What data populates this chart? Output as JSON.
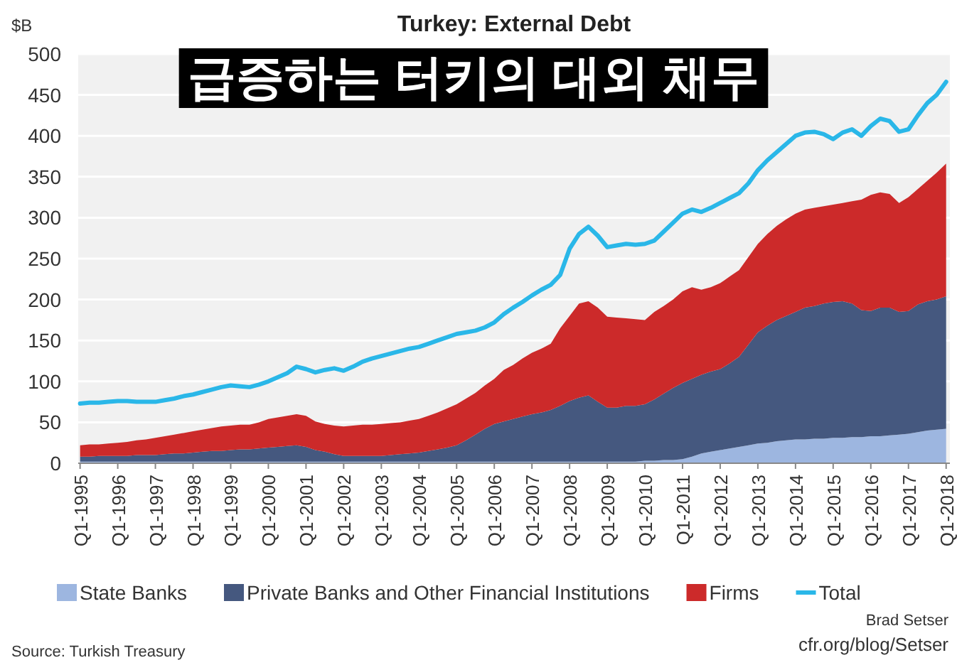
{
  "chart_data": {
    "type": "area",
    "title": "Turkey: External Debt",
    "subtitle": "급증하는 터키의 대외 채무",
    "ylabel": "$B",
    "stacked": true,
    "grid": "y",
    "legend": "bottom",
    "categories": [
      "Q1-1995",
      null,
      null,
      null,
      "Q1-1996",
      null,
      null,
      null,
      "Q1-1997",
      null,
      null,
      null,
      "Q1-1998",
      null,
      null,
      null,
      "Q1-1999",
      null,
      null,
      null,
      "Q1-2000",
      null,
      null,
      null,
      "Q1-2001",
      null,
      null,
      null,
      "Q1-2002",
      null,
      null,
      null,
      "Q1-2003",
      null,
      null,
      null,
      "Q1-2004",
      null,
      null,
      null,
      "Q1-2005",
      null,
      null,
      null,
      "Q1-2006",
      null,
      null,
      null,
      "Q1-2007",
      null,
      null,
      null,
      "Q1-2008",
      null,
      null,
      null,
      "Q1-2009",
      null,
      null,
      null,
      "Q1-2010",
      null,
      null,
      null,
      "Q1-2011",
      null,
      null,
      null,
      "Q1-2012",
      null,
      null,
      null,
      "Q1-2013",
      null,
      null,
      null,
      "Q1-2014",
      null,
      null,
      null,
      "Q1-2015",
      null,
      null,
      null,
      "Q1-2016",
      null,
      null,
      null,
      "Q1-2017",
      null,
      null,
      null,
      "Q1-2018"
    ],
    "series": [
      {
        "name": "State Banks",
        "color": "#9db6e0",
        "values": [
          2,
          2,
          2,
          2,
          2,
          2,
          2,
          2,
          2,
          2,
          2,
          2,
          2,
          2,
          2,
          2,
          2,
          2,
          2,
          2,
          2,
          2,
          2,
          2,
          2,
          2,
          2,
          2,
          2,
          2,
          2,
          2,
          2,
          2,
          2,
          2,
          2,
          2,
          2,
          2,
          2,
          2,
          2,
          2,
          2,
          2,
          2,
          2,
          2,
          2,
          2,
          2,
          2,
          2,
          2,
          2,
          2,
          2,
          2,
          2,
          3,
          3,
          4,
          4,
          5,
          8,
          12,
          14,
          16,
          18,
          20,
          22,
          24,
          25,
          27,
          28,
          29,
          29,
          30,
          30,
          31,
          31,
          32,
          32,
          33,
          33,
          34,
          35,
          36,
          38,
          40,
          41,
          42
        ]
      },
      {
        "name": "Private Banks and Other Financial Institutions",
        "color": "#45587f",
        "values": [
          6,
          6,
          7,
          7,
          7,
          7,
          8,
          8,
          8,
          9,
          10,
          10,
          11,
          12,
          13,
          13,
          14,
          15,
          15,
          16,
          17,
          18,
          19,
          20,
          18,
          14,
          12,
          9,
          7,
          7,
          7,
          7,
          7,
          8,
          9,
          10,
          11,
          13,
          15,
          17,
          20,
          26,
          33,
          40,
          46,
          49,
          52,
          55,
          58,
          60,
          63,
          68,
          74,
          78,
          81,
          73,
          66,
          66,
          68,
          68,
          69,
          75,
          81,
          88,
          93,
          95,
          96,
          98,
          99,
          104,
          110,
          123,
          136,
          143,
          148,
          152,
          156,
          161,
          162,
          165,
          166,
          167,
          163,
          155,
          153,
          157,
          156,
          150,
          150,
          156,
          158,
          159,
          162
        ]
      },
      {
        "name": "Firms",
        "color": "#cc2a2a",
        "values": [
          14,
          15,
          14,
          15,
          16,
          17,
          18,
          19,
          21,
          22,
          23,
          25,
          26,
          27,
          28,
          30,
          30,
          30,
          30,
          32,
          35,
          36,
          37,
          38,
          38,
          35,
          34,
          35,
          36,
          37,
          38,
          38,
          39,
          39,
          39,
          40,
          41,
          43,
          45,
          48,
          50,
          51,
          51,
          53,
          55,
          63,
          66,
          71,
          75,
          78,
          81,
          95,
          104,
          115,
          115,
          115,
          111,
          110,
          107,
          106,
          103,
          107,
          107,
          108,
          112,
          112,
          104,
          103,
          105,
          106,
          106,
          107,
          108,
          112,
          115,
          118,
          120,
          120,
          120,
          119,
          119,
          120,
          125,
          135,
          142,
          141,
          139,
          133,
          139,
          141,
          147,
          155,
          162
        ]
      },
      {
        "name": "Total",
        "type": "line",
        "color": "#2ab7e8",
        "values": [
          73,
          74,
          74,
          75,
          76,
          76,
          75,
          75,
          75,
          77,
          79,
          82,
          84,
          87,
          90,
          93,
          95,
          94,
          93,
          96,
          100,
          105,
          110,
          118,
          115,
          111,
          114,
          116,
          113,
          118,
          124,
          128,
          131,
          134,
          137,
          140,
          142,
          146,
          150,
          154,
          158,
          160,
          162,
          166,
          172,
          182,
          190,
          197,
          205,
          212,
          218,
          230,
          262,
          280,
          289,
          278,
          264,
          266,
          268,
          267,
          268,
          272,
          283,
          294,
          305,
          310,
          307,
          312,
          318,
          324,
          330,
          342,
          358,
          370,
          380,
          390,
          400,
          404,
          405,
          402,
          396,
          404,
          408,
          400,
          412,
          421,
          418,
          405,
          408,
          425,
          440,
          450,
          466
        ]
      }
    ],
    "ylim": [
      0,
      500
    ],
    "yticks": [
      0,
      50,
      100,
      150,
      200,
      250,
      300,
      350,
      400,
      450,
      500
    ],
    "annotations": [
      "Source: Turkish Treasury",
      "Brad Setser",
      "cfr.org/blog/Setser"
    ]
  }
}
